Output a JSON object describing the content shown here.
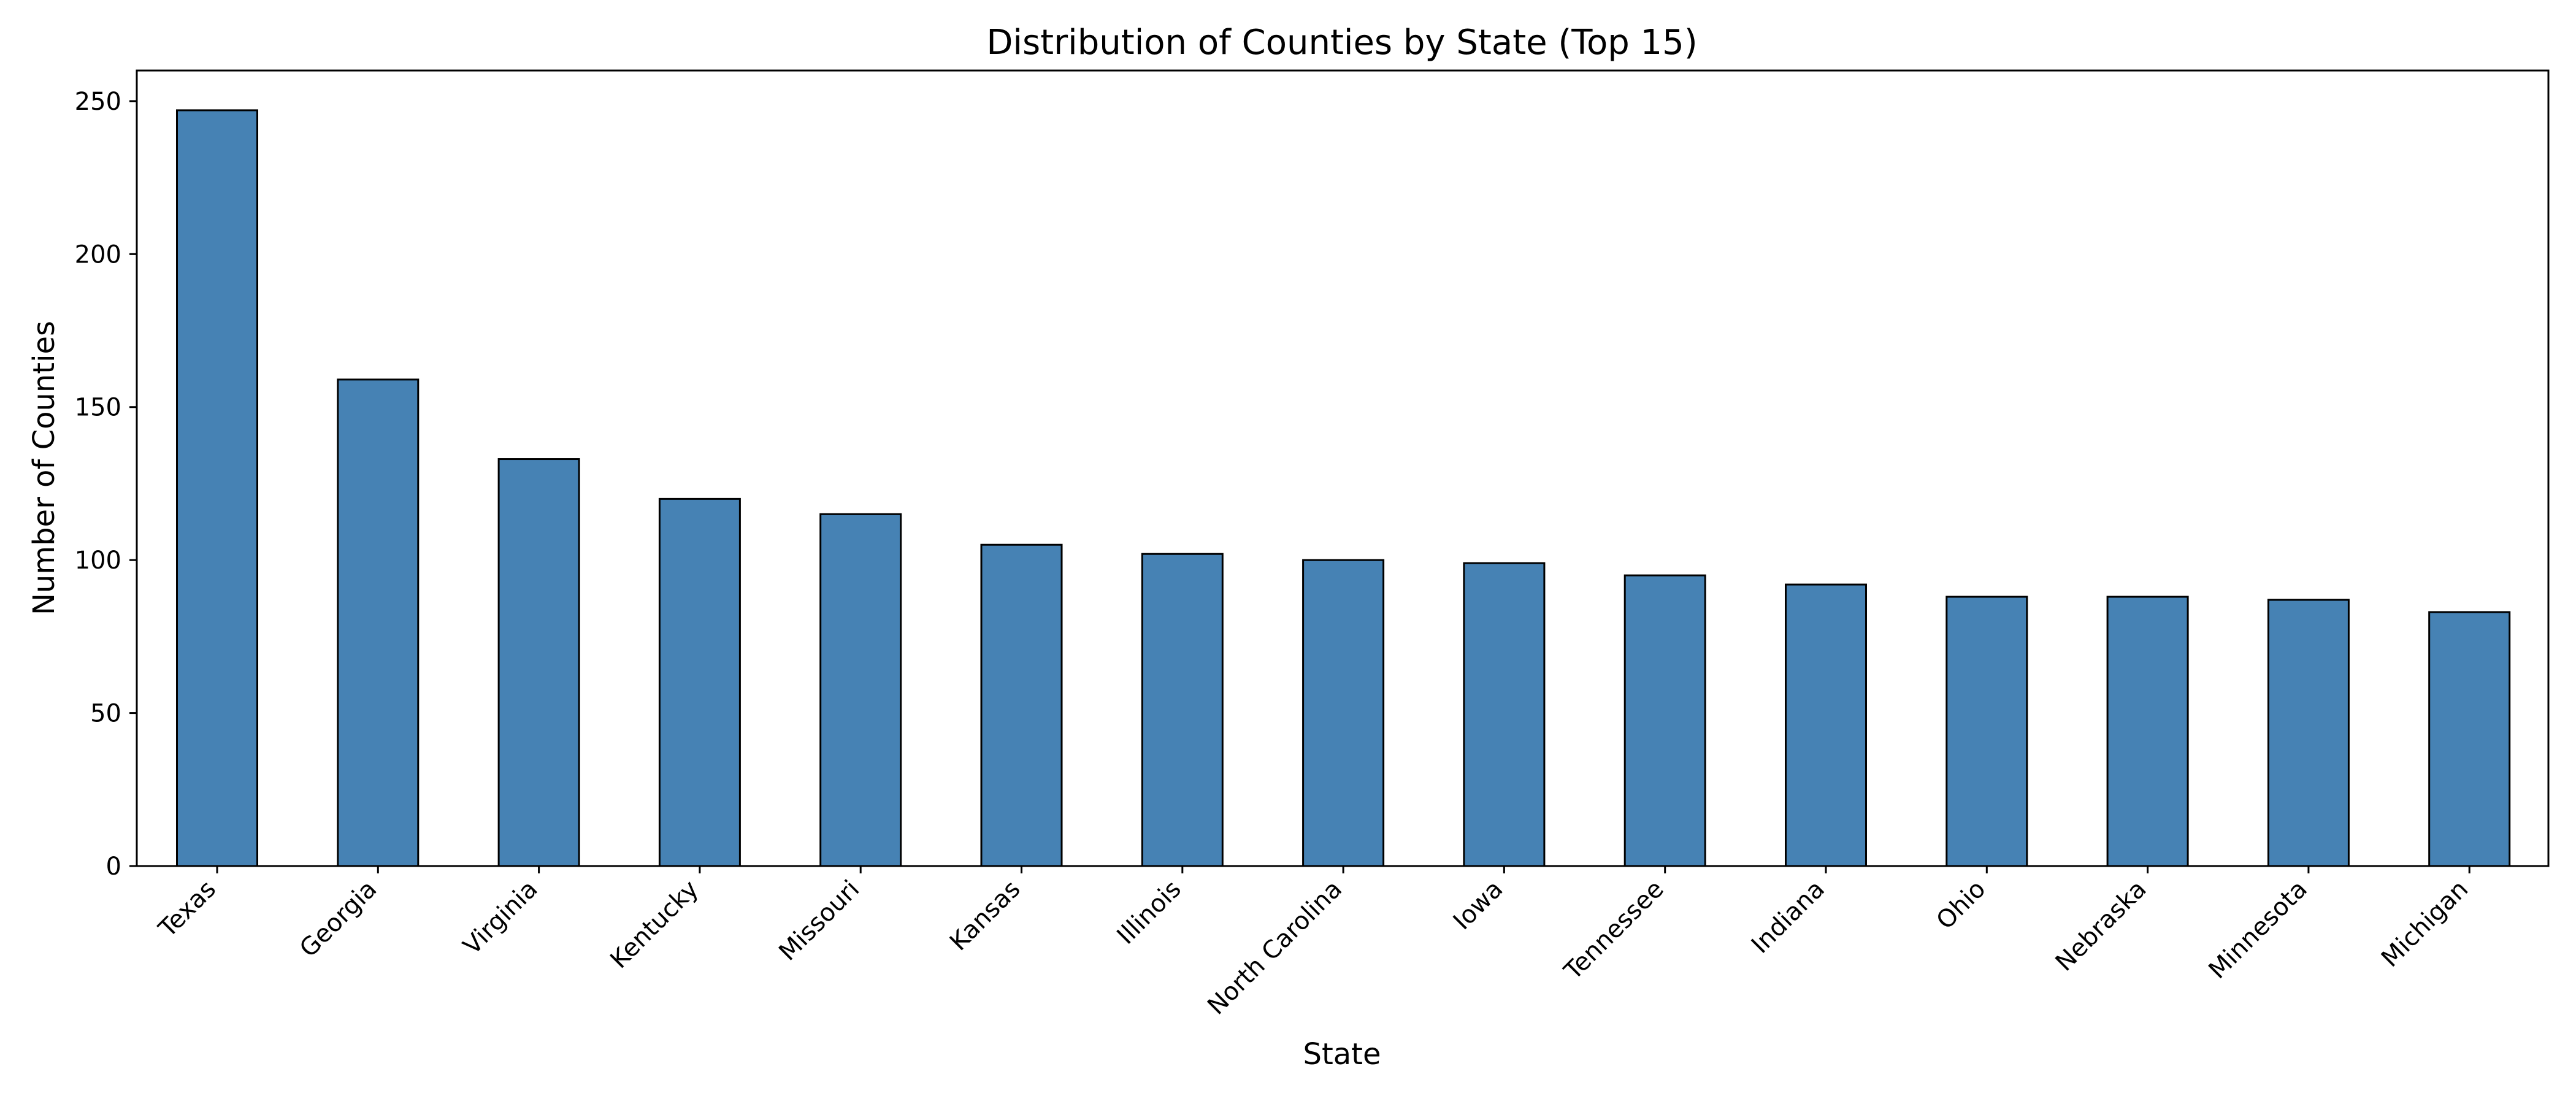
{
  "chart_data": {
    "type": "bar",
    "title": "Distribution of Counties by State (Top 15)",
    "xlabel": "State",
    "ylabel": "Number of Counties",
    "categories": [
      "Texas",
      "Georgia",
      "Virginia",
      "Kentucky",
      "Missouri",
      "Kansas",
      "Illinois",
      "North Carolina",
      "Iowa",
      "Tennessee",
      "Indiana",
      "Ohio",
      "Nebraska",
      "Minnesota",
      "Michigan"
    ],
    "values": [
      247,
      159,
      133,
      120,
      115,
      105,
      102,
      100,
      99,
      95,
      92,
      88,
      88,
      87,
      83
    ],
    "ylim": [
      0,
      260
    ],
    "yticks": [
      0,
      50,
      100,
      150,
      200,
      250
    ],
    "grid": false,
    "legend": "none",
    "bar_color": "#4682b4",
    "bar_edge_color": "#000000"
  }
}
